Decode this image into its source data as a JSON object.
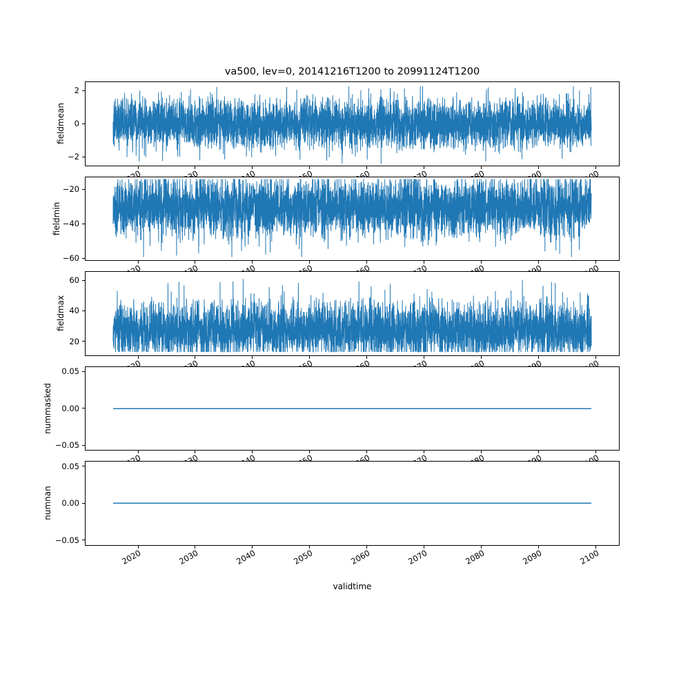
{
  "figure": {
    "title": "va500, lev=0, 20141216T1200 to 20991124T1200",
    "xlabel": "validtime",
    "background": "#ffffff",
    "line_color": "#1f77b4"
  },
  "x_axis": {
    "tick_values": [
      2020,
      2030,
      2040,
      2050,
      2060,
      2070,
      2080,
      2090,
      2100
    ],
    "tick_labels": [
      "2020",
      "2030",
      "2040",
      "2050",
      "2060",
      "2070",
      "2080",
      "2090",
      "2100"
    ],
    "data_range": [
      2014.96,
      2099.9
    ]
  },
  "chart_data": [
    {
      "type": "line",
      "name": "fieldmean",
      "ylabel": "fieldmean",
      "ytick_values": [
        2,
        0,
        -2
      ],
      "ytick_labels": [
        "2",
        "0",
        "−2"
      ],
      "ylim": [
        -2.55,
        2.55
      ],
      "signal": "noise",
      "mean": 0,
      "std": 0.75,
      "min": -2.45,
      "max": 2.3,
      "spike_prob": 0.002,
      "spike_dir": 0,
      "n": 5000,
      "seed": 7,
      "color": "#1f77b4"
    },
    {
      "type": "line",
      "name": "fieldmin",
      "ylabel": "fieldmin",
      "ytick_values": [
        -20,
        -40,
        -60
      ],
      "ytick_labels": [
        "−20",
        "−40",
        "−60"
      ],
      "ylim": [
        -61.5,
        -12.5
      ],
      "signal": "noise",
      "mean": -30,
      "std": 8.5,
      "min": -59.5,
      "max": -13.5,
      "spike_prob": 0.0015,
      "spike_dir": -1,
      "n": 5000,
      "seed": 11,
      "color": "#1f77b4"
    },
    {
      "type": "line",
      "name": "fieldmax",
      "ylabel": "fieldmax",
      "ytick_values": [
        60,
        40,
        20
      ],
      "ytick_labels": [
        "60",
        "40",
        "20"
      ],
      "ylim": [
        10.5,
        66
      ],
      "signal": "noise",
      "mean": 27,
      "std": 9,
      "min": 12.5,
      "max": 62,
      "spike_prob": 0.003,
      "spike_dir": 1,
      "n": 5000,
      "seed": 13,
      "color": "#1f77b4"
    },
    {
      "type": "line",
      "name": "nummasked",
      "ylabel": "nummasked",
      "ytick_values": [
        0.05,
        0,
        -0.05
      ],
      "ytick_labels": [
        "0.05",
        "0.00",
        "−0.05"
      ],
      "ylim": [
        -0.057,
        0.057
      ],
      "signal": "flat",
      "value": 0,
      "n": 2,
      "seed": 1,
      "color": "#1f77b4"
    },
    {
      "type": "line",
      "name": "numnan",
      "ylabel": "numnan",
      "ytick_values": [
        0.05,
        0,
        -0.05
      ],
      "ytick_labels": [
        "0.05",
        "0.00",
        "−0.05"
      ],
      "ylim": [
        -0.057,
        0.057
      ],
      "signal": "flat",
      "value": 0,
      "n": 2,
      "seed": 2,
      "color": "#1f77b4"
    }
  ]
}
